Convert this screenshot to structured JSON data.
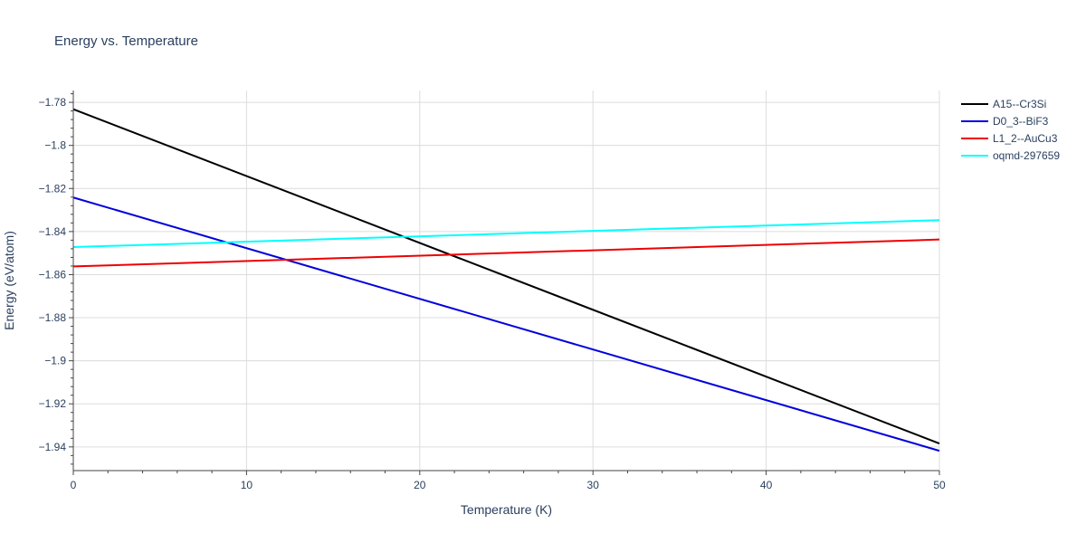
{
  "chart_data": {
    "type": "line",
    "title": "Energy vs. Temperature",
    "xlabel": "Temperature (K)",
    "ylabel": "Energy (eV/atom)",
    "xlim": [
      0,
      50
    ],
    "ylim": [
      -1.951,
      -1.7745
    ],
    "x_ticks": [
      0,
      10,
      20,
      30,
      40,
      50
    ],
    "x_tick_labels": [
      "0",
      "10",
      "20",
      "30",
      "40",
      "50"
    ],
    "y_ticks": [
      -1.78,
      -1.8,
      -1.82,
      -1.84,
      -1.86,
      -1.88,
      -1.9,
      -1.92,
      -1.94
    ],
    "y_tick_labels": [
      "−1.78",
      "−1.8",
      "−1.82",
      "−1.84",
      "−1.86",
      "−1.88",
      "−1.9",
      "−1.92",
      "−1.94"
    ],
    "grid": true,
    "legend_position": "top-right outside",
    "series": [
      {
        "name": "A15--Cr3Si",
        "color": "#000000",
        "x": [
          0,
          50
        ],
        "y": [
          -1.7832,
          -1.9384
        ]
      },
      {
        "name": "D0_3--BiF3",
        "color": "#0000dd",
        "x": [
          0,
          50
        ],
        "y": [
          -1.8242,
          -1.9418
        ]
      },
      {
        "name": "L1_2--AuCu3",
        "color": "#ee0000",
        "x": [
          0,
          50
        ],
        "y": [
          -1.8562,
          -1.8437
        ]
      },
      {
        "name": "oqmd-297659",
        "color": "#00ffff",
        "x": [
          0,
          50
        ],
        "y": [
          -1.8472,
          -1.8347
        ]
      }
    ]
  }
}
